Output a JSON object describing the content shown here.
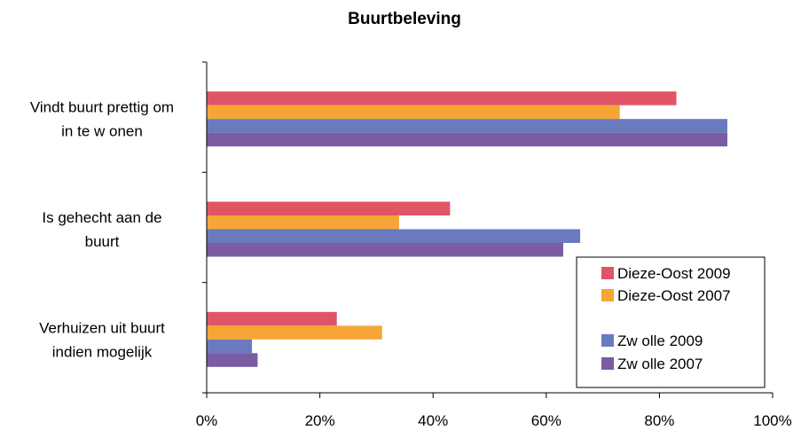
{
  "chart_data": {
    "type": "bar",
    "orientation": "horizontal",
    "title": "Buurtbeleving",
    "categories": [
      [
        "Vindt buurt prettig om",
        "in te w onen"
      ],
      [
        "Is gehecht aan de",
        "buurt"
      ],
      [
        "Verhuizen uit buurt",
        "indien mogelijk"
      ]
    ],
    "series": [
      {
        "name": "Dieze-Oost 2009",
        "color": "#e05565",
        "values": [
          83,
          43,
          23
        ]
      },
      {
        "name": "Dieze-Oost 2007",
        "color": "#f5a637",
        "values": [
          73,
          34,
          31
        ]
      },
      {
        "name": "Zw olle 2009",
        "color": "#6a7abf",
        "values": [
          92,
          66,
          8
        ]
      },
      {
        "name": "Zw olle 2007",
        "color": "#7b5ba3",
        "values": [
          92,
          63,
          9
        ]
      }
    ],
    "xlim": [
      0,
      100
    ],
    "x_ticks": [
      "0%",
      "20%",
      "40%",
      "60%",
      "80%",
      "100%"
    ],
    "unit": "%",
    "grid": false,
    "legend_position": "bottom-right"
  }
}
